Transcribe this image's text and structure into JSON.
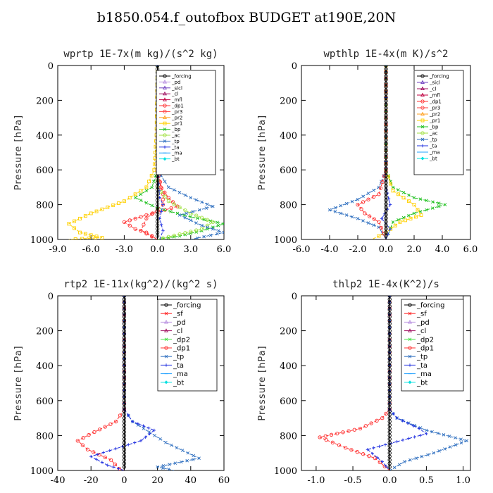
{
  "title": "b1850.054.f_outofbox  BUDGET at190E,20N",
  "colors": {
    "_forcing": "#000000",
    "_pd": "#b890e0",
    "_sicl": "#7040c0",
    "_cl": "#a01060",
    "_mfl": "#c00040",
    "_dp1": "#ff3030",
    "_pr3": "#ff4040",
    "_pr2": "#ffa020",
    "_pr1": "#ffd000",
    "_bp": "#20c020",
    "_ac": "#a0e040",
    "_tp": "#3070c0",
    "_ta": "#2030e0",
    "_ma": "#20a0ff",
    "_bt": "#00e0e0",
    "_sf": "#ff2020",
    "_dp2": "#40e040"
  },
  "chart_data": [
    {
      "type": "line",
      "title": "wprtp  1E-7x(m kg)/(s^2 kg)",
      "ylabel": "Pressure [hPa]",
      "xlim": [
        -9,
        6
      ],
      "ylim": [
        1000,
        0
      ],
      "y_inverted": true,
      "xticks": [
        "-9.0",
        "-6.0",
        "-3.0",
        "0.0",
        "3.0",
        "6.0"
      ],
      "yticks": [
        "0",
        "200",
        "400",
        "600",
        "800",
        "1000"
      ],
      "legend": [
        "_forcing",
        "_pd",
        "_sicl",
        "_cl",
        "_mfl",
        "_dp1",
        "_pr3",
        "_pr2",
        "_pr1",
        "_bp",
        "_ac",
        "_tp",
        "_ta",
        "_ma",
        "_bt"
      ],
      "legend_position": "top-right",
      "series": [
        {
          "name": "_pr1",
          "points": [
            [
              0,
              0
            ],
            [
              -0.1,
              400
            ],
            [
              -0.3,
              600
            ],
            [
              -1,
              700
            ],
            [
              -3,
              780
            ],
            [
              -6,
              850
            ],
            [
              -8,
              910
            ],
            [
              -7,
              960
            ],
            [
              -5,
              990
            ],
            [
              -8,
              1000
            ]
          ]
        },
        {
          "name": "_dp1",
          "points": [
            [
              0,
              0
            ],
            [
              0,
              600
            ],
            [
              0.3,
              700
            ],
            [
              1,
              760
            ],
            [
              1.8,
              810
            ],
            [
              -1,
              860
            ],
            [
              -3,
              900
            ],
            [
              -2,
              940
            ],
            [
              -1,
              960
            ],
            [
              0,
              1000
            ]
          ]
        },
        {
          "name": "_pr3",
          "points": [
            [
              0,
              0
            ],
            [
              0,
              600
            ],
            [
              0.5,
              740
            ],
            [
              0.5,
              800
            ],
            [
              -1,
              880
            ],
            [
              -1.5,
              950
            ],
            [
              0,
              1000
            ]
          ]
        },
        {
          "name": "_bp",
          "points": [
            [
              0,
              0
            ],
            [
              0,
              600
            ],
            [
              -0.5,
              700
            ],
            [
              -2,
              760
            ],
            [
              0,
              820
            ],
            [
              3,
              870
            ],
            [
              6,
              910
            ],
            [
              4,
              950
            ],
            [
              2,
              980
            ],
            [
              0,
              1000
            ]
          ]
        },
        {
          "name": "_ac",
          "points": [
            [
              0,
              0
            ],
            [
              0,
              700
            ],
            [
              1,
              780
            ],
            [
              3,
              850
            ],
            [
              5,
              900
            ],
            [
              4,
              940
            ],
            [
              2,
              970
            ],
            [
              0,
              1000
            ]
          ]
        },
        {
          "name": "_tp",
          "points": [
            [
              0,
              0
            ],
            [
              0,
              600
            ],
            [
              1,
              700
            ],
            [
              3,
              760
            ],
            [
              5,
              810
            ],
            [
              2,
              860
            ],
            [
              4,
              920
            ],
            [
              6,
              960
            ],
            [
              3,
              1000
            ]
          ]
        },
        {
          "name": "_ta",
          "points": [
            [
              0,
              0
            ],
            [
              0,
              600
            ],
            [
              0.2,
              760
            ],
            [
              0.5,
              800
            ],
            [
              0.2,
              880
            ],
            [
              0.5,
              950
            ],
            [
              0.2,
              1000
            ]
          ]
        },
        {
          "name": "_forcing",
          "points": [
            [
              0,
              0
            ],
            [
              0,
              1000
            ]
          ]
        }
      ]
    },
    {
      "type": "line",
      "title": "wpthlp  1E-4x(m K)/s^2",
      "ylabel": "Pressure [hPa]",
      "xlim": [
        -6,
        6
      ],
      "ylim": [
        1000,
        0
      ],
      "y_inverted": true,
      "xticks": [
        "-6.0",
        "-4.0",
        "-2.0",
        "0.0",
        "2.0",
        "4.0",
        "6.0"
      ],
      "yticks": [
        "0",
        "200",
        "400",
        "600",
        "800",
        "1000"
      ],
      "legend": [
        "_forcing",
        "_sicl",
        "_cl",
        "_mfl",
        "_dp1",
        "_pr3",
        "_pr2",
        "_pr1",
        "_bp",
        "_ac",
        "_tp",
        "_ta",
        "_ma",
        "_bt"
      ],
      "legend_position": "top-right",
      "series": [
        {
          "name": "_tp",
          "points": [
            [
              0,
              0
            ],
            [
              0,
              600
            ],
            [
              -0.5,
              700
            ],
            [
              -2,
              770
            ],
            [
              -4,
              830
            ],
            [
              -2,
              880
            ],
            [
              -0.5,
              930
            ],
            [
              0,
              1000
            ]
          ]
        },
        {
          "name": "_bp",
          "points": [
            [
              0,
              0
            ],
            [
              0,
              600
            ],
            [
              0.5,
              700
            ],
            [
              2,
              760
            ],
            [
              4.2,
              800
            ],
            [
              2,
              850
            ],
            [
              0.5,
              900
            ],
            [
              0,
              1000
            ]
          ]
        },
        {
          "name": "_pr1",
          "points": [
            [
              0,
              0
            ],
            [
              0,
              600
            ],
            [
              0.5,
              720
            ],
            [
              2,
              800
            ],
            [
              2.5,
              860
            ],
            [
              1,
              900
            ],
            [
              0,
              960
            ],
            [
              -1,
              1000
            ]
          ]
        },
        {
          "name": "_dp1",
          "points": [
            [
              0,
              0
            ],
            [
              0,
              600
            ],
            [
              -0.5,
              740
            ],
            [
              -2,
              800
            ],
            [
              -1.5,
              850
            ],
            [
              -0.5,
              900
            ],
            [
              0,
              1000
            ]
          ]
        },
        {
          "name": "_ta",
          "points": [
            [
              0,
              0
            ],
            [
              0,
              700
            ],
            [
              0.3,
              800
            ],
            [
              -0.3,
              880
            ],
            [
              0.3,
              940
            ],
            [
              0,
              1000
            ]
          ]
        },
        {
          "name": "_forcing",
          "points": [
            [
              0,
              0
            ],
            [
              0,
              1000
            ]
          ]
        }
      ]
    },
    {
      "type": "line",
      "title": "rtp2  1E-11x(kg^2)/(kg^2 s)",
      "ylabel": "Pressure [hPa]",
      "xlim": [
        -40,
        60
      ],
      "ylim": [
        1000,
        0
      ],
      "y_inverted": true,
      "xticks": [
        "-40",
        "-20",
        "0",
        "20",
        "40",
        "60"
      ],
      "yticks": [
        "0",
        "200",
        "400",
        "600",
        "800",
        "1000"
      ],
      "legend": [
        "_forcing",
        "_sf",
        "_pd",
        "_cl",
        "_dp2",
        "_dp1",
        "_tp",
        "_ta",
        "_ma",
        "_bt"
      ],
      "legend_position": "top-right",
      "series": [
        {
          "name": "_dp1",
          "points": [
            [
              0,
              0
            ],
            [
              0,
              650
            ],
            [
              -5,
              720
            ],
            [
              -18,
              780
            ],
            [
              -28,
              830
            ],
            [
              -22,
              880
            ],
            [
              -8,
              940
            ],
            [
              -3,
              990
            ],
            [
              0,
              1000
            ]
          ]
        },
        {
          "name": "_tp",
          "points": [
            [
              0,
              0
            ],
            [
              0,
              650
            ],
            [
              5,
              720
            ],
            [
              15,
              780
            ],
            [
              25,
              840
            ],
            [
              45,
              930
            ],
            [
              20,
              980
            ],
            [
              30,
              1000
            ]
          ]
        },
        {
          "name": "_ta",
          "points": [
            [
              0,
              0
            ],
            [
              0,
              650
            ],
            [
              5,
              720
            ],
            [
              18,
              770
            ],
            [
              10,
              830
            ],
            [
              -20,
              920
            ],
            [
              -10,
              970
            ],
            [
              0,
              1000
            ]
          ]
        },
        {
          "name": "_forcing",
          "points": [
            [
              0,
              0
            ],
            [
              0,
              1000
            ]
          ]
        }
      ]
    },
    {
      "type": "line",
      "title": "thlp2  1E-4x(K^2)/s",
      "ylabel": "Pressure [hPa]",
      "xlim": [
        -1.2,
        1.1
      ],
      "ylim": [
        1000,
        0
      ],
      "y_inverted": true,
      "xticks": [
        "-1.0",
        "-0.5",
        "0.0",
        "0.5",
        "1.0"
      ],
      "yticks": [
        "0",
        "200",
        "400",
        "600",
        "800",
        "1000"
      ],
      "legend": [
        "_forcing",
        "_sf",
        "_pd",
        "_cl",
        "_dp2",
        "_dp1",
        "_tp",
        "_ta",
        "_ma",
        "_bt"
      ],
      "legend_position": "top-right",
      "series": [
        {
          "name": "_dp1",
          "points": [
            [
              0,
              0
            ],
            [
              0,
              650
            ],
            [
              -0.1,
              700
            ],
            [
              -0.4,
              760
            ],
            [
              -0.95,
              810
            ],
            [
              -0.6,
              870
            ],
            [
              -0.2,
              930
            ],
            [
              0,
              1000
            ]
          ]
        },
        {
          "name": "_tp",
          "points": [
            [
              0,
              0
            ],
            [
              0,
              650
            ],
            [
              0.1,
              700
            ],
            [
              0.5,
              770
            ],
            [
              1.05,
              830
            ],
            [
              0.6,
              900
            ],
            [
              0.2,
              950
            ],
            [
              0,
              1000
            ]
          ]
        },
        {
          "name": "_ta",
          "points": [
            [
              0,
              0
            ],
            [
              0,
              650
            ],
            [
              0.1,
              700
            ],
            [
              0.4,
              760
            ],
            [
              0.5,
              790
            ],
            [
              -0.3,
              880
            ],
            [
              -0.1,
              950
            ],
            [
              0,
              1000
            ]
          ]
        },
        {
          "name": "_forcing",
          "points": [
            [
              0,
              0
            ],
            [
              0,
              1000
            ]
          ]
        }
      ]
    }
  ]
}
